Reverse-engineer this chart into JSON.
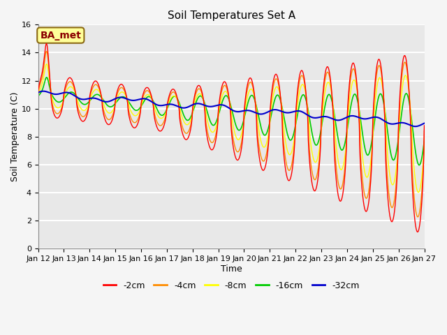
{
  "title": "Soil Temperatures Set A",
  "xlabel": "Time",
  "ylabel": "Soil Temperature (C)",
  "annotation": "BA_met",
  "annotation_color": "#8B0000",
  "annotation_bg": "#FFFF99",
  "annotation_edge": "#8B6914",
  "xlim": [
    0,
    360
  ],
  "ylim": [
    0,
    16
  ],
  "yticks": [
    0,
    2,
    4,
    6,
    8,
    10,
    12,
    14,
    16
  ],
  "xtick_labels": [
    "Jan 12",
    "Jan 13",
    "Jan 14",
    "Jan 15",
    "Jan 16",
    "Jan 17",
    "Jan 18",
    "Jan 19",
    "Jan 20",
    "Jan 21",
    "Jan 22",
    "Jan 23",
    "Jan 24",
    "Jan 25",
    "Jan 26",
    "Jan 27"
  ],
  "xtick_positions": [
    0,
    24,
    48,
    72,
    96,
    120,
    144,
    168,
    192,
    216,
    240,
    264,
    288,
    312,
    336,
    360
  ],
  "colors": {
    "-2cm": "#FF0000",
    "-4cm": "#FF8C00",
    "-8cm": "#FFFF00",
    "-16cm": "#00CC00",
    "-32cm": "#0000CD"
  },
  "legend_labels": [
    "-2cm",
    "-4cm",
    "-8cm",
    "-16cm",
    "-32cm"
  ],
  "background_color": "#E8E8E8",
  "grid_color": "#FFFFFF",
  "title_fontsize": 11,
  "axis_fontsize": 9,
  "tick_fontsize": 8,
  "fig_width": 6.4,
  "fig_height": 4.8,
  "dpi": 100
}
